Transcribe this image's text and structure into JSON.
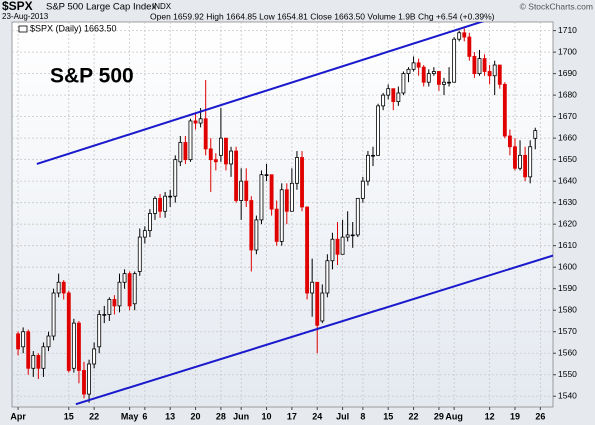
{
  "chart_data": {
    "type": "candlestick",
    "symbol": "$SPX",
    "name": "S&P 500 Large Cap Index",
    "exchange": "INDX",
    "date": "23-Aug-2013",
    "quote": "Open 1659.92 High 1664.85 Low 1654.81 Close 1663.50 Volume 1.9B Chg +6.54 (+0.39%)",
    "source": "© StockCharts.com",
    "legend": "$SPX (Daily) 1663.50",
    "annotation": "S&P 500",
    "up_color": "#000000",
    "down_color": "#e00000",
    "line_color": "#1a1acc",
    "grid": true,
    "xlim": [
      -1.2,
      105.5
    ],
    "ylim": [
      1535,
      1714
    ],
    "yticks": [
      1540,
      1550,
      1560,
      1570,
      1580,
      1590,
      1600,
      1610,
      1620,
      1630,
      1640,
      1650,
      1660,
      1670,
      1680,
      1690,
      1700,
      1710
    ],
    "xticks": [
      {
        "value": 0,
        "label": "Apr"
      },
      {
        "value": 10,
        "label": "15"
      },
      {
        "value": 15,
        "label": "22"
      },
      {
        "value": 22,
        "label": "May"
      },
      {
        "value": 25,
        "label": "6"
      },
      {
        "value": 30,
        "label": "13"
      },
      {
        "value": 35,
        "label": "20"
      },
      {
        "value": 40,
        "label": "28"
      },
      {
        "value": 44,
        "label": "Jun"
      },
      {
        "value": 49,
        "label": "10"
      },
      {
        "value": 54,
        "label": "17"
      },
      {
        "value": 59,
        "label": "24"
      },
      {
        "value": 64,
        "label": "Jul"
      },
      {
        "value": 68,
        "label": "8"
      },
      {
        "value": 73,
        "label": "15"
      },
      {
        "value": 78,
        "label": "22"
      },
      {
        "value": 83,
        "label": "29"
      },
      {
        "value": 86,
        "label": "Aug"
      },
      {
        "value": 93,
        "label": "12"
      },
      {
        "value": 98,
        "label": "19"
      },
      {
        "value": 103,
        "label": "26"
      }
    ],
    "open": [
      1569,
      1563,
      1570,
      1553,
      1559,
      1553,
      1563,
      1568,
      1588,
      1593,
      1588,
      1553,
      1574,
      1552,
      1541,
      1555,
      1563,
      1578,
      1578,
      1585,
      1582,
      1593,
      1597,
      1583,
      1598,
      1614,
      1617,
      1625,
      1632,
      1626,
      1633,
      1633,
      1649,
      1658,
      1650,
      1668,
      1667,
      1669,
      1655,
      1650,
      1652,
      1660,
      1648,
      1654,
      1631,
      1640,
      1631,
      1608,
      1622,
      1643,
      1643,
      1627,
      1612,
      1636,
      1626,
      1639,
      1651,
      1628,
      1588,
      1593,
      1575,
      1588,
      1603,
      1613,
      1606,
      1614,
      1615,
      1615,
      1632,
      1640,
      1652,
      1652,
      1675,
      1680,
      1683,
      1677,
      1681,
      1690,
      1692,
      1695,
      1693,
      1686,
      1690,
      1691,
      1685,
      1686,
      1686,
      1706,
      1709,
      1707,
      1698,
      1690,
      1697,
      1691,
      1689,
      1694,
      1685,
      1661,
      1656,
      1646,
      1652,
      1642,
      1659.92
    ],
    "high": [
      1570,
      1572,
      1571,
      1561,
      1560,
      1565,
      1570,
      1590,
      1597,
      1594,
      1589,
      1576,
      1575,
      1556,
      1557,
      1565,
      1580,
      1582,
      1586,
      1587,
      1597,
      1599,
      1598,
      1598,
      1618,
      1619,
      1627,
      1633,
      1634,
      1635,
      1636,
      1652,
      1661,
      1661,
      1669,
      1672,
      1674,
      1687,
      1660,
      1653,
      1674,
      1660,
      1656,
      1656,
      1646,
      1646,
      1633,
      1624,
      1645,
      1648,
      1643,
      1631,
      1639,
      1639,
      1646,
      1654,
      1654,
      1628,
      1604,
      1593,
      1592,
      1606,
      1616,
      1621,
      1622,
      1626,
      1621,
      1632,
      1642,
      1654,
      1656,
      1676,
      1681,
      1685,
      1683,
      1684,
      1691,
      1693,
      1698,
      1697,
      1694,
      1692,
      1693,
      1691,
      1688,
      1693,
      1707,
      1710,
      1711,
      1709,
      1700,
      1701,
      1699,
      1694,
      1696,
      1694,
      1686,
      1664,
      1660,
      1659,
      1656,
      1659,
      1664.85
    ],
    "low": [
      1559,
      1560,
      1550,
      1549,
      1548,
      1549,
      1561,
      1566,
      1586,
      1585,
      1551,
      1551,
      1546,
      1539,
      1537,
      1553,
      1560,
      1574,
      1575,
      1578,
      1579,
      1590,
      1580,
      1580,
      1596,
      1611,
      1614,
      1622,
      1623,
      1623,
      1628,
      1630,
      1647,
      1648,
      1649,
      1664,
      1665,
      1652,
      1635,
      1645,
      1649,
      1645,
      1642,
      1630,
      1622,
      1628,
      1598,
      1606,
      1620,
      1640,
      1624,
      1610,
      1610,
      1620,
      1626,
      1636,
      1626,
      1585,
      1577,
      1560,
      1574,
      1586,
      1599,
      1601,
      1606,
      1612,
      1609,
      1614,
      1630,
      1638,
      1647,
      1652,
      1673,
      1678,
      1673,
      1675,
      1680,
      1686,
      1691,
      1689,
      1684,
      1684,
      1689,
      1682,
      1680,
      1684,
      1686,
      1705,
      1705,
      1696,
      1688,
      1689,
      1689,
      1685,
      1680,
      1683,
      1660,
      1652,
      1645,
      1645,
      1640,
      1639,
      1654.81
    ],
    "close": [
      1562,
      1570,
      1553,
      1559,
      1553,
      1563,
      1568,
      1588,
      1593,
      1588,
      1552,
      1574,
      1552,
      1541,
      1555,
      1562,
      1578,
      1578,
      1585,
      1582,
      1593,
      1597,
      1582,
      1597,
      1614,
      1617,
      1625,
      1632,
      1626,
      1633,
      1633,
      1650,
      1658,
      1650,
      1668,
      1667,
      1669,
      1655,
      1650,
      1649,
      1660,
      1648,
      1654,
      1631,
      1640,
      1631,
      1608,
      1622,
      1643,
      1643,
      1627,
      1612,
      1636,
      1626,
      1639,
      1651,
      1628,
      1588,
      1593,
      1573,
      1588,
      1603,
      1613,
      1606,
      1614,
      1615,
      1615,
      1632,
      1640,
      1652,
      1652,
      1675,
      1680,
      1683,
      1677,
      1681,
      1690,
      1692,
      1695,
      1693,
      1686,
      1690,
      1691,
      1685,
      1686,
      1686,
      1706,
      1709,
      1707,
      1698,
      1690,
      1697,
      1691,
      1689,
      1694,
      1685,
      1661,
      1656,
      1646,
      1652,
      1642,
      1656,
      1663.5
    ],
    "trendlines": [
      {
        "x": [
          3.7,
          92.1
        ],
        "y": [
          1648,
          1714.6
        ]
      },
      {
        "x": [
          11.4,
          106.3
        ],
        "y": [
          1536.3,
          1606
        ]
      }
    ]
  }
}
